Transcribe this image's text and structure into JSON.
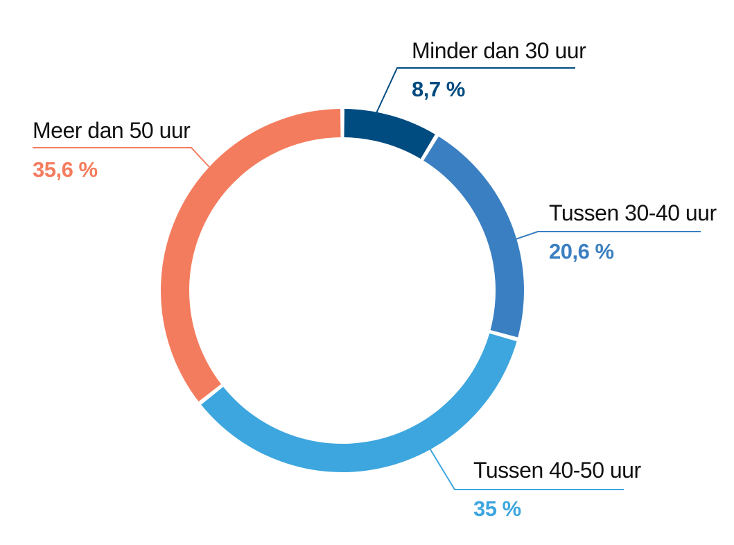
{
  "chart_data": {
    "type": "pie",
    "variant": "donut",
    "slices": [
      {
        "label": "Minder dan 30 uur",
        "value": 8.7,
        "value_label": "8,7 %",
        "color": "#004b80"
      },
      {
        "label": "Tussen 30-40 uur",
        "value": 20.6,
        "value_label": "20,6 %",
        "color": "#3a7fc1"
      },
      {
        "label": "Tussen 40-50 uur",
        "value": 35,
        "value_label": "35 %",
        "color": "#3da6de"
      },
      {
        "label": "Meer dan 50 uur",
        "value": 35.6,
        "value_label": "35,6 %",
        "color": "#f47c5e"
      }
    ],
    "legend": "callout labels"
  }
}
